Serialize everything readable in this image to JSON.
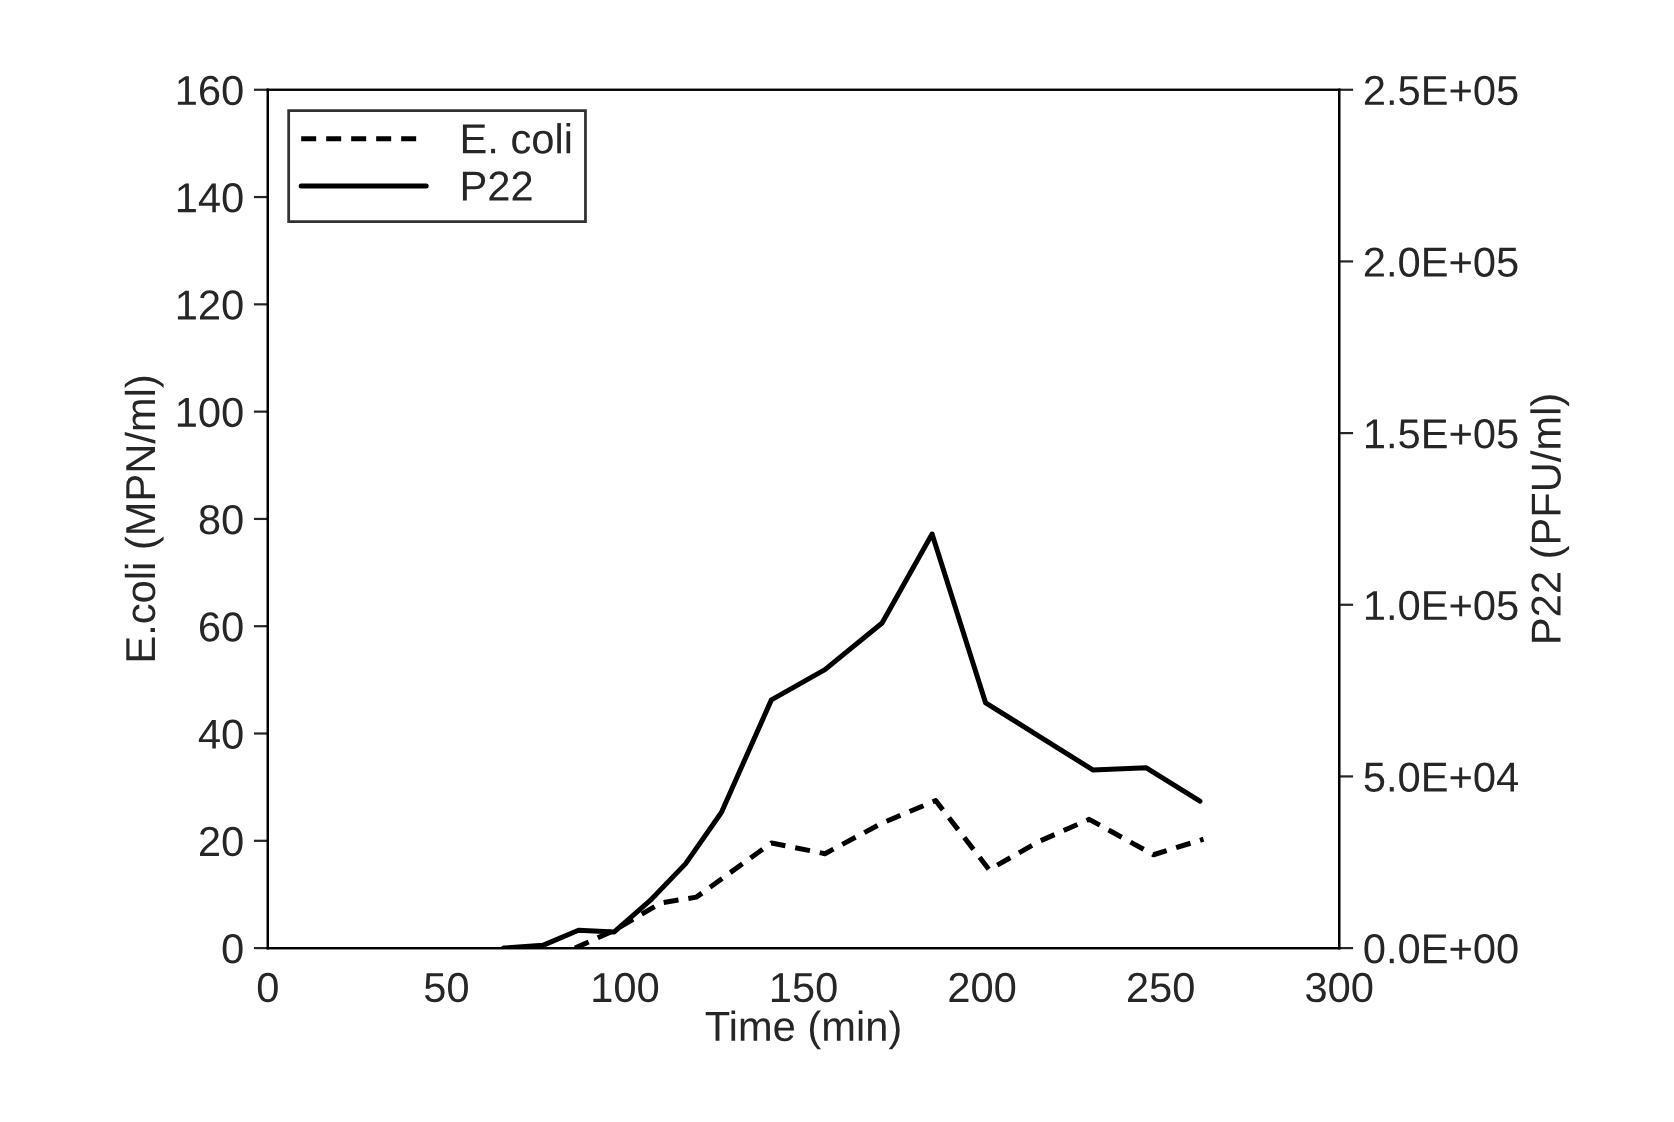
{
  "chart_data": {
    "type": "line",
    "xlabel": "Time (min)",
    "ylabel": "E.coli (MPN/ml)",
    "y2label": "P22 (PFU/ml)",
    "xlim": [
      0,
      300
    ],
    "xticks": [
      0,
      50,
      100,
      150,
      200,
      250,
      300
    ],
    "ylim": [
      0,
      160
    ],
    "yticks": [
      0,
      20,
      40,
      60,
      80,
      100,
      120,
      140,
      160
    ],
    "y2lim": [
      0,
      250000
    ],
    "y2ticks": [
      {
        "value": 0,
        "label": "0.0E+00"
      },
      {
        "value": 50000,
        "label": "5.0E+04"
      },
      {
        "value": 100000,
        "label": "1.0E+05"
      },
      {
        "value": 150000,
        "label": "1.5E+05"
      },
      {
        "value": 200000,
        "label": "2.0E+05"
      },
      {
        "value": 250000,
        "label": "2.5E+05"
      }
    ],
    "legend": "top left",
    "grid": false,
    "series": [
      {
        "name": "E. coli",
        "color": "#000000",
        "line_style": "dashed",
        "x": [
          86,
          97,
          110,
          120,
          141,
          156,
          172,
          187,
          202,
          216,
          230,
          248,
          262
        ],
        "values": [
          0,
          3.3,
          8.4,
          9.5,
          19.6,
          17.6,
          23.3,
          27.5,
          14.6,
          19.9,
          24,
          17.4,
          20.3
        ]
      },
      {
        "name": "P22",
        "color": "#000000",
        "line_style": "solid",
        "axis": "y2",
        "x": [
          66,
          77,
          87,
          97,
          107,
          117,
          127,
          141,
          156,
          172,
          186,
          201,
          216,
          231,
          246,
          261
        ],
        "values": [
          0,
          800,
          5200,
          4700,
          13800,
          24600,
          39500,
          72300,
          81100,
          94700,
          120600,
          71400,
          61700,
          51900,
          52500,
          42800
        ]
      }
    ]
  }
}
